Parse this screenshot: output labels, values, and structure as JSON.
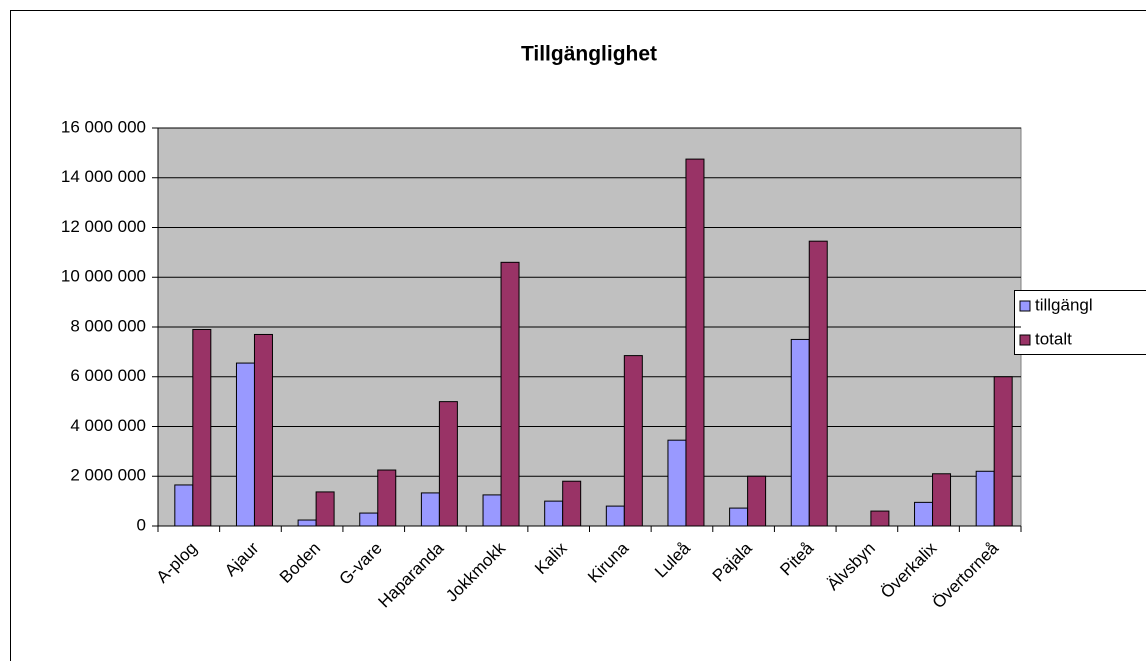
{
  "chart_data": {
    "type": "bar",
    "title": "Tillgänglighet",
    "categories": [
      "A-plog",
      "Ajaur",
      "Boden",
      "G-vare",
      "Haparanda",
      "Jokkmokk",
      "Kalix",
      "Kiruna",
      "Luleå",
      "Pajala",
      "Piteå",
      "Älvsbyn",
      "Överkalix",
      "Övertorneå"
    ],
    "series": [
      {
        "name": "tillgängl",
        "color": "#9999ff",
        "values": [
          1650000,
          6550000,
          240000,
          520000,
          1330000,
          1250000,
          1000000,
          800000,
          3450000,
          720000,
          7500000,
          0,
          950000,
          2200000
        ]
      },
      {
        "name": "totalt",
        "color": "#993366",
        "values": [
          7900000,
          7700000,
          1370000,
          2250000,
          5000000,
          10600000,
          1800000,
          6850000,
          14750000,
          2000000,
          11450000,
          600000,
          2100000,
          6000000
        ]
      }
    ],
    "ylim": [
      0,
      16000000
    ],
    "yticks": [
      {
        "value": 0,
        "label": "0"
      },
      {
        "value": 2000000,
        "label": "2 000 000"
      },
      {
        "value": 4000000,
        "label": "4 000 000"
      },
      {
        "value": 6000000,
        "label": "6 000 000"
      },
      {
        "value": 8000000,
        "label": "8 000 000"
      },
      {
        "value": 10000000,
        "label": "10 000 000"
      },
      {
        "value": 12000000,
        "label": "12 000 000"
      },
      {
        "value": 14000000,
        "label": "14 000 000"
      },
      {
        "value": 16000000,
        "label": "16 000 000"
      }
    ],
    "grid": true,
    "legend": "right"
  }
}
